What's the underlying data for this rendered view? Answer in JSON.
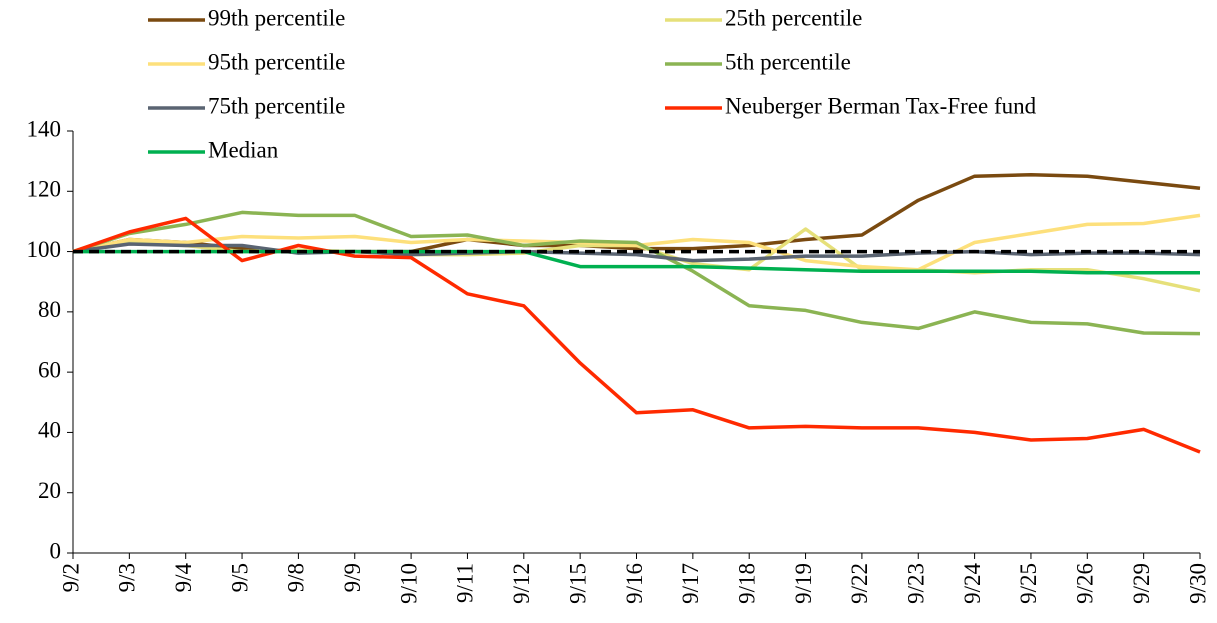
{
  "chart_data": {
    "type": "line",
    "categories": [
      "9/2",
      "9/3",
      "9/4",
      "9/5",
      "9/8",
      "9/9",
      "9/10",
      "9/11",
      "9/12",
      "9/15",
      "9/16",
      "9/17",
      "9/18",
      "9/19",
      "9/22",
      "9/23",
      "9/24",
      "9/25",
      "9/26",
      "9/29",
      "9/30"
    ],
    "series": [
      {
        "name": "99th percentile",
        "color": "#7a4a10",
        "values": [
          100,
          104,
          103,
          101,
          100,
          100,
          100,
          104,
          102,
          102,
          101,
          101,
          102,
          104,
          105.5,
          117,
          125,
          125.5,
          125,
          123,
          121
        ]
      },
      {
        "name": "25th percentile",
        "color": "#e6e07a",
        "values": [
          100,
          103,
          102,
          100,
          100.5,
          100,
          99,
          99,
          99.5,
          102,
          102,
          96,
          94,
          107.5,
          94,
          94,
          93,
          94,
          94,
          91,
          87
        ]
      },
      {
        "name": "95th percentile",
        "color": "#fde07c",
        "values": [
          100,
          104,
          103,
          105,
          104.5,
          105,
          103,
          104,
          103.5,
          103,
          102,
          104,
          103,
          97,
          95,
          94,
          103,
          106,
          109,
          109.3,
          112
        ]
      },
      {
        "name": "5th percentile",
        "color": "#8bb453",
        "values": [
          100,
          106,
          109,
          113,
          112,
          112,
          105,
          105.5,
          102,
          103.5,
          103,
          93.5,
          82,
          80.5,
          76.5,
          74.5,
          80,
          76.5,
          76,
          73,
          72.8
        ]
      },
      {
        "name": "75th percentile",
        "color": "#5a6472",
        "values": [
          100,
          102.5,
          102,
          102,
          99.5,
          100,
          99,
          99.5,
          100,
          99.5,
          99,
          97,
          97.5,
          98.5,
          98.5,
          99.5,
          100,
          99,
          99.5,
          99.5,
          99
        ]
      },
      {
        "name": "Neuberger Berman Tax-Free fund",
        "color": "#ff2a00",
        "values": [
          100,
          106.5,
          111,
          97,
          102,
          98.5,
          98,
          86,
          82,
          63,
          46.5,
          47.5,
          41.5,
          42,
          41.5,
          41.5,
          40,
          37.5,
          38,
          41,
          33.5
        ]
      },
      {
        "name": "Median",
        "color": "#00b050",
        "values": [
          100,
          100,
          100,
          100,
          100,
          100,
          100,
          100,
          100,
          95,
          95,
          95,
          94.5,
          94,
          93.5,
          93.5,
          93.5,
          93.5,
          93,
          93,
          93
        ]
      }
    ],
    "reference_line": {
      "value": 100,
      "color": "#000000",
      "dashed": true
    },
    "ylim": [
      0,
      140
    ],
    "yticks": [
      0,
      20,
      40,
      60,
      80,
      100,
      120,
      140
    ],
    "grid": false,
    "legend": "top"
  }
}
